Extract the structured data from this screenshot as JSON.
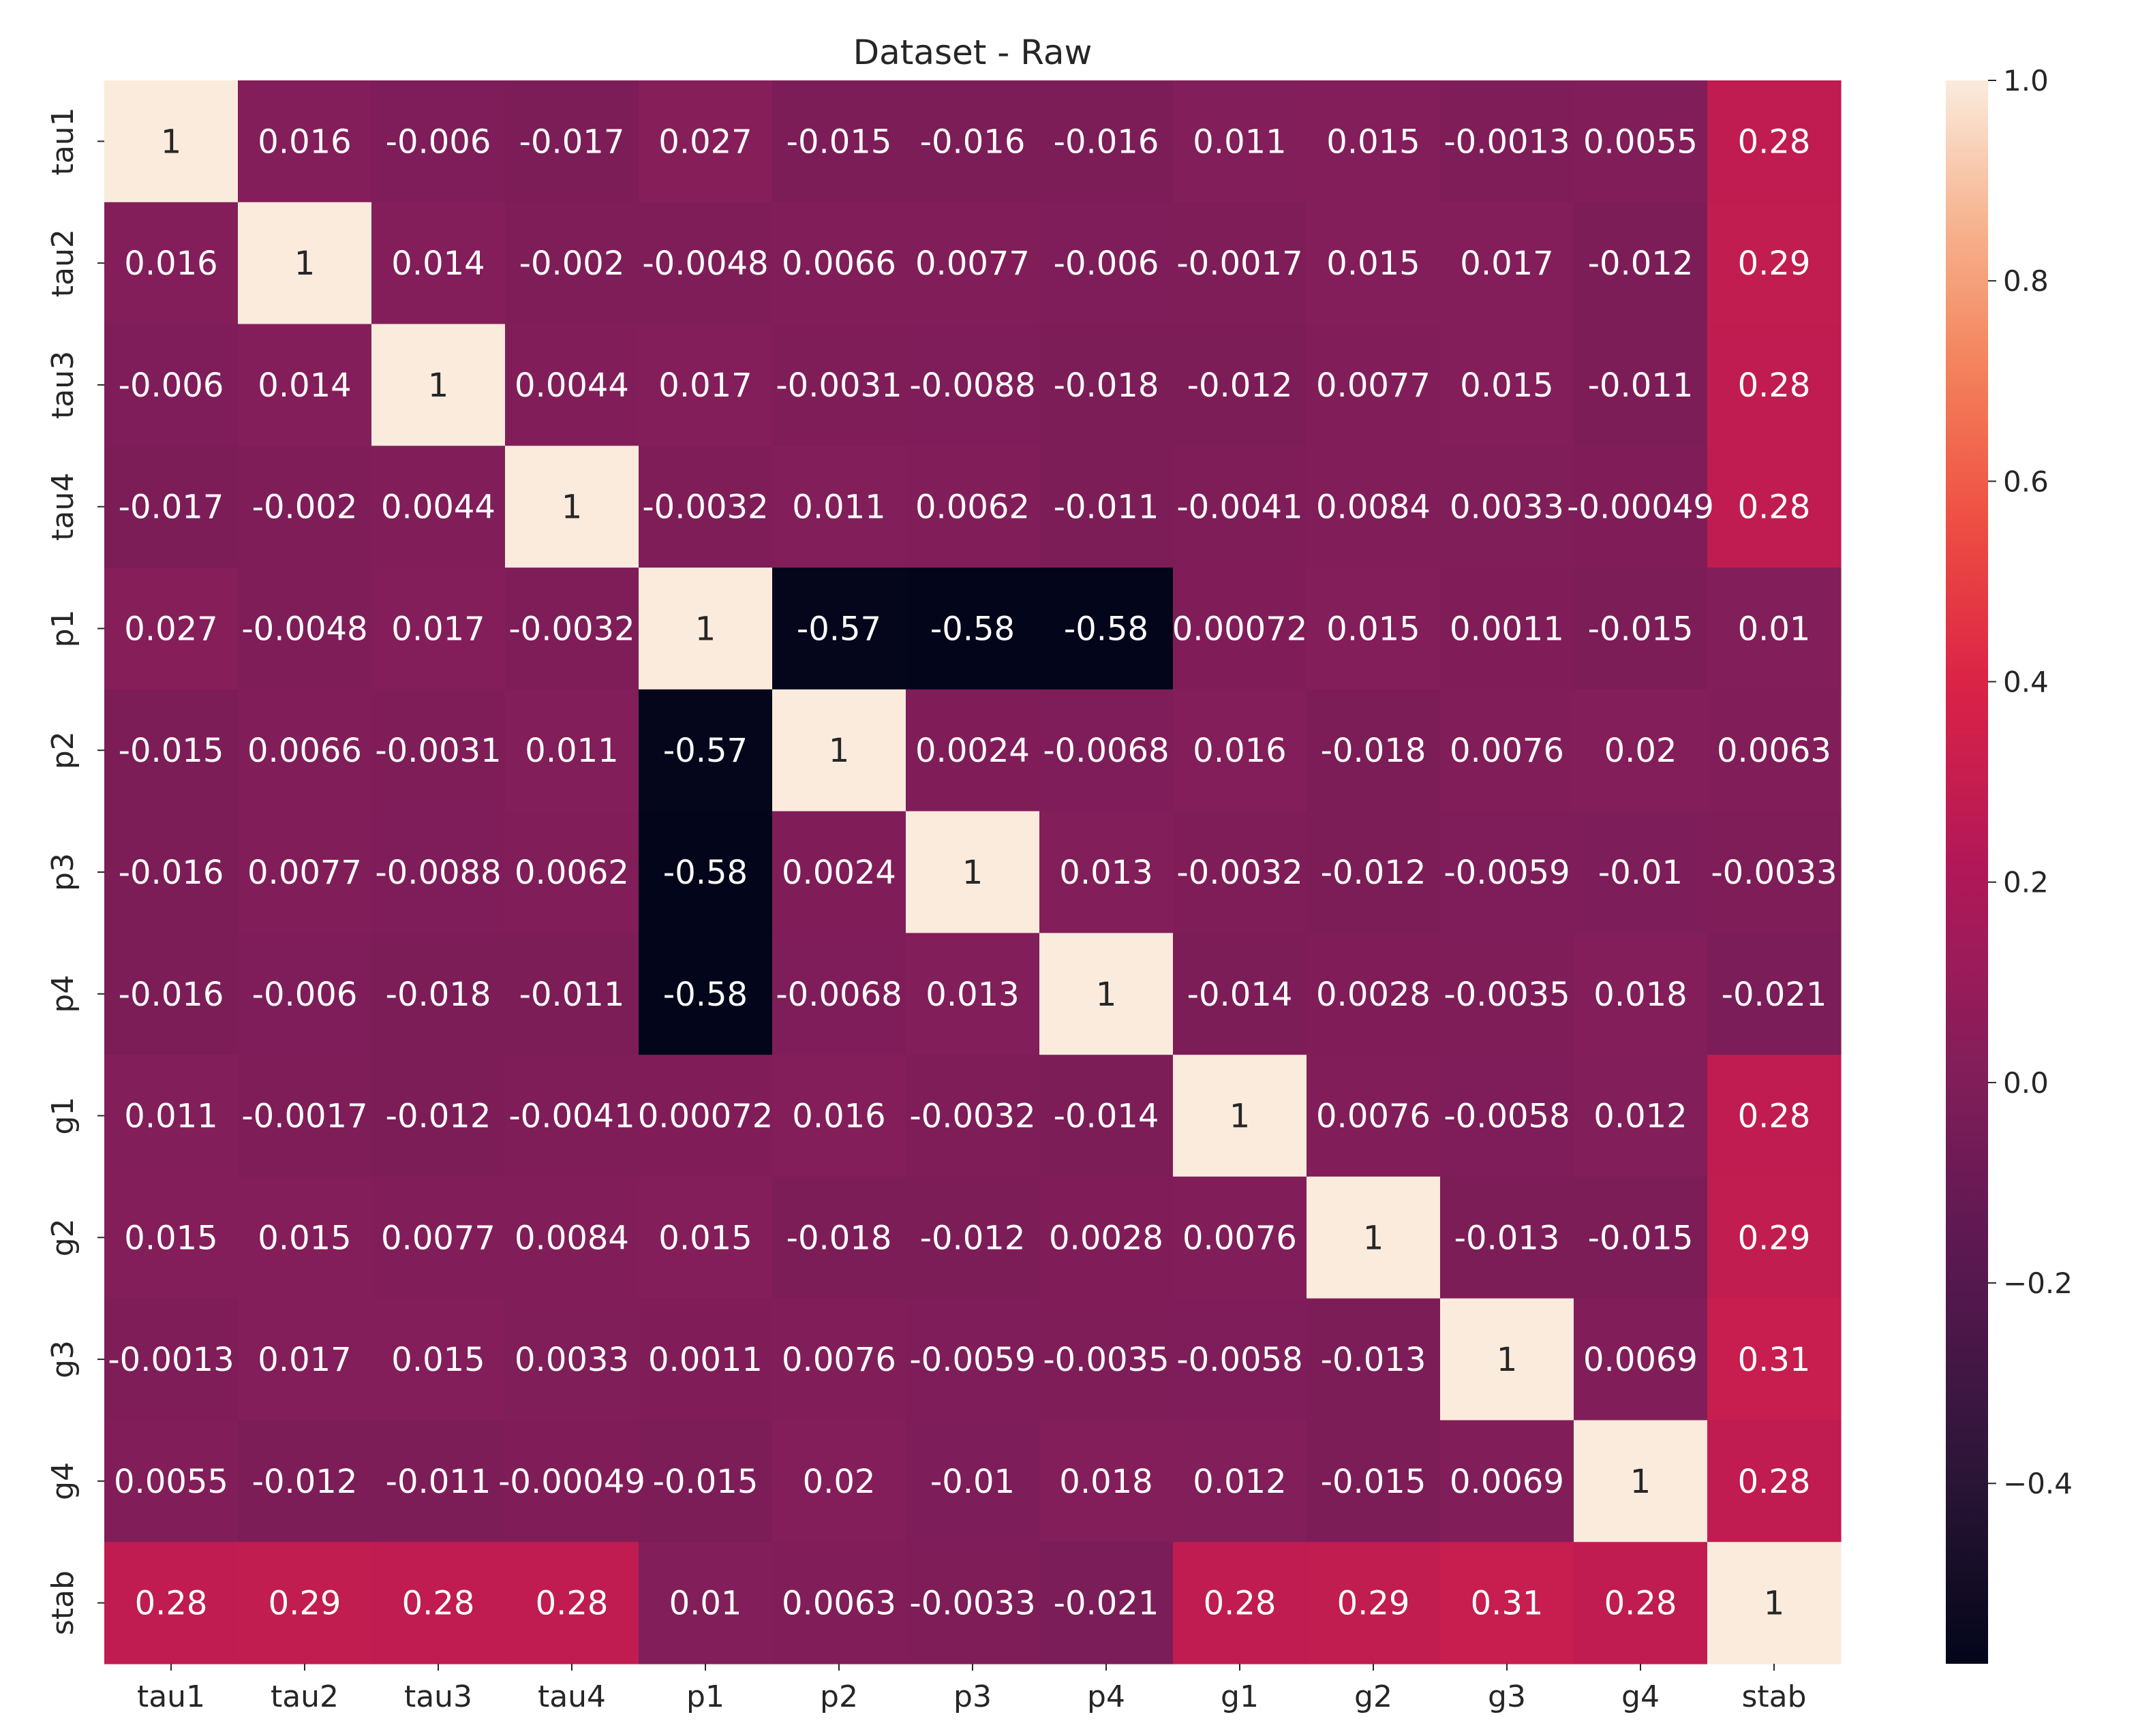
{
  "chart_data": {
    "type": "heatmap",
    "title": "Dataset - Raw",
    "xlabel": "",
    "ylabel": "",
    "x_labels": [
      "tau1",
      "tau2",
      "tau3",
      "tau4",
      "p1",
      "p2",
      "p3",
      "p4",
      "g1",
      "g2",
      "g3",
      "g4",
      "stab"
    ],
    "y_labels": [
      "tau1",
      "tau2",
      "tau3",
      "tau4",
      "p1",
      "p2",
      "p3",
      "p4",
      "g1",
      "g2",
      "g3",
      "g4",
      "stab"
    ],
    "values": [
      [
        1,
        0.016,
        -0.006,
        -0.017,
        0.027,
        -0.015,
        -0.016,
        -0.016,
        0.011,
        0.015,
        -0.0013,
        0.0055,
        0.28
      ],
      [
        0.016,
        1,
        0.014,
        -0.002,
        -0.0048,
        0.0066,
        0.0077,
        -0.006,
        -0.0017,
        0.015,
        0.017,
        -0.012,
        0.29
      ],
      [
        -0.006,
        0.014,
        1,
        0.0044,
        0.017,
        -0.0031,
        -0.0088,
        -0.018,
        -0.012,
        0.0077,
        0.015,
        -0.011,
        0.28
      ],
      [
        -0.017,
        -0.002,
        0.0044,
        1,
        -0.0032,
        0.011,
        0.0062,
        -0.011,
        -0.0041,
        0.0084,
        0.0033,
        -0.00049,
        0.28
      ],
      [
        0.027,
        -0.0048,
        0.017,
        -0.0032,
        1,
        -0.57,
        -0.58,
        -0.58,
        0.00072,
        0.015,
        0.0011,
        -0.015,
        0.01
      ],
      [
        -0.015,
        0.0066,
        -0.0031,
        0.011,
        -0.57,
        1,
        0.0024,
        -0.0068,
        0.016,
        -0.018,
        0.0076,
        0.02,
        0.0063
      ],
      [
        -0.016,
        0.0077,
        -0.0088,
        0.0062,
        -0.58,
        0.0024,
        1,
        0.013,
        -0.0032,
        -0.012,
        -0.0059,
        -0.01,
        -0.0033
      ],
      [
        -0.016,
        -0.006,
        -0.018,
        -0.011,
        -0.58,
        -0.0068,
        0.013,
        1,
        -0.014,
        0.0028,
        -0.0035,
        0.018,
        -0.021
      ],
      [
        0.011,
        -0.0017,
        -0.012,
        -0.0041,
        0.00072,
        0.016,
        -0.0032,
        -0.014,
        1,
        0.0076,
        -0.0058,
        0.012,
        0.28
      ],
      [
        0.015,
        0.015,
        0.0077,
        0.0084,
        0.015,
        -0.018,
        -0.012,
        0.0028,
        0.0076,
        1,
        -0.013,
        -0.015,
        0.29
      ],
      [
        -0.0013,
        0.017,
        0.015,
        0.0033,
        0.0011,
        0.0076,
        -0.0059,
        -0.0035,
        -0.0058,
        -0.013,
        1,
        0.0069,
        0.31
      ],
      [
        0.0055,
        -0.012,
        -0.011,
        -0.00049,
        -0.015,
        0.02,
        -0.01,
        0.018,
        0.012,
        -0.015,
        0.0069,
        1,
        0.28
      ],
      [
        0.28,
        0.29,
        0.28,
        0.28,
        0.01,
        0.0063,
        -0.0033,
        -0.021,
        0.28,
        0.29,
        0.31,
        0.28,
        1
      ]
    ],
    "cell_labels": [
      [
        "1",
        "0.016",
        "-0.006",
        "-0.017",
        "0.027",
        "-0.015",
        "-0.016",
        "-0.016",
        "0.011",
        "0.015",
        "-0.0013",
        "0.0055",
        "0.28"
      ],
      [
        "0.016",
        "1",
        "0.014",
        "-0.002",
        "-0.0048",
        "0.0066",
        "0.0077",
        "-0.006",
        "-0.0017",
        "0.015",
        "0.017",
        "-0.012",
        "0.29"
      ],
      [
        "-0.006",
        "0.014",
        "1",
        "0.0044",
        "0.017",
        "-0.0031",
        "-0.0088",
        "-0.018",
        "-0.012",
        "0.0077",
        "0.015",
        "-0.011",
        "0.28"
      ],
      [
        "-0.017",
        "-0.002",
        "0.0044",
        "1",
        "-0.0032",
        "0.011",
        "0.0062",
        "-0.011",
        "-0.0041",
        "0.0084",
        "0.0033",
        "-0.00049",
        "0.28"
      ],
      [
        "0.027",
        "-0.0048",
        "0.017",
        "-0.0032",
        "1",
        "-0.57",
        "-0.58",
        "-0.58",
        "0.00072",
        "0.015",
        "0.0011",
        "-0.015",
        "0.01"
      ],
      [
        "-0.015",
        "0.0066",
        "-0.0031",
        "0.011",
        "-0.57",
        "1",
        "0.0024",
        "-0.0068",
        "0.016",
        "-0.018",
        "0.0076",
        "0.02",
        "0.0063"
      ],
      [
        "-0.016",
        "0.0077",
        "-0.0088",
        "0.0062",
        "-0.58",
        "0.0024",
        "1",
        "0.013",
        "-0.0032",
        "-0.012",
        "-0.0059",
        "-0.01",
        "-0.0033"
      ],
      [
        "-0.016",
        "-0.006",
        "-0.018",
        "-0.011",
        "-0.58",
        "-0.0068",
        "0.013",
        "1",
        "-0.014",
        "0.0028",
        "-0.0035",
        "0.018",
        "-0.021"
      ],
      [
        "0.011",
        "-0.0017",
        "-0.012",
        "-0.0041",
        "0.00072",
        "0.016",
        "-0.0032",
        "-0.014",
        "1",
        "0.0076",
        "-0.0058",
        "0.012",
        "0.28"
      ],
      [
        "0.015",
        "0.015",
        "0.0077",
        "0.0084",
        "0.015",
        "-0.018",
        "-0.012",
        "0.0028",
        "0.0076",
        "1",
        "-0.013",
        "-0.015",
        "0.29"
      ],
      [
        "-0.0013",
        "0.017",
        "0.015",
        "0.0033",
        "0.0011",
        "0.0076",
        "-0.0059",
        "-0.0035",
        "-0.0058",
        "-0.013",
        "1",
        "0.0069",
        "0.31"
      ],
      [
        "0.0055",
        "-0.012",
        "-0.011",
        "-0.00049",
        "-0.015",
        "0.02",
        "-0.01",
        "0.018",
        "0.012",
        "-0.015",
        "0.0069",
        "1",
        "0.28"
      ],
      [
        "0.28",
        "0.29",
        "0.28",
        "0.28",
        "0.01",
        "0.0063",
        "-0.0033",
        "-0.021",
        "0.28",
        "0.29",
        "0.31",
        "0.28",
        "1"
      ]
    ],
    "colorbar": {
      "range": [
        -0.58,
        1.0
      ],
      "ticks": [
        1.0,
        0.8,
        0.6,
        0.4,
        0.2,
        0.0,
        -0.2,
        -0.4
      ],
      "tick_labels": [
        "1.0",
        "0.8",
        "0.6",
        "0.4",
        "0.2",
        "0.0",
        "−0.2",
        "−0.4"
      ],
      "colormap": "rocket",
      "placement": "right"
    },
    "grid": false,
    "legend": "none"
  }
}
